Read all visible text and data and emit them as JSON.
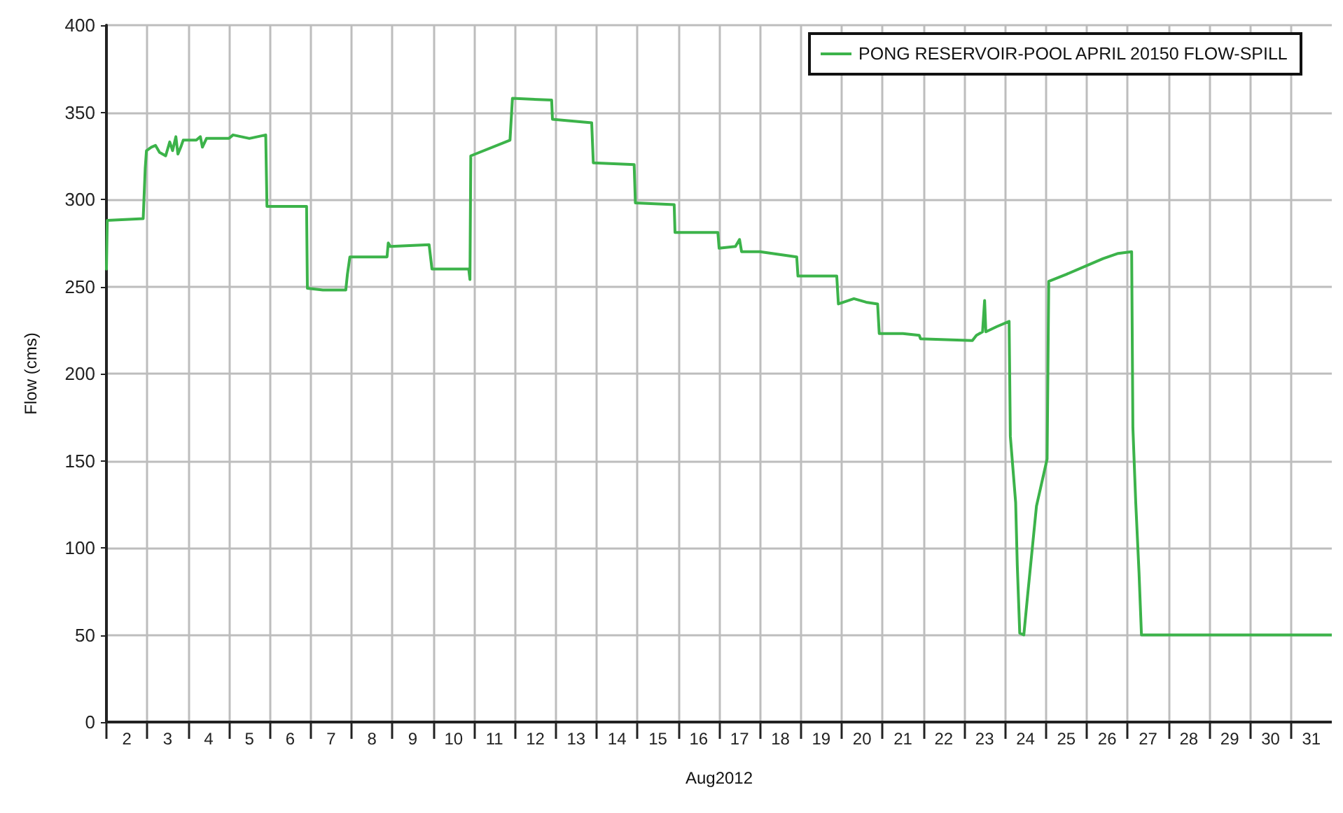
{
  "chart_data": {
    "type": "line",
    "xlabel": "Aug2012",
    "ylabel": "Flow (cms)",
    "x": [
      2,
      2.02,
      2.9,
      2.95,
      2.98,
      3.1,
      3.2,
      3.3,
      3.45,
      3.55,
      3.62,
      3.7,
      3.75,
      3.82,
      3.88,
      4.2,
      4.3,
      4.35,
      4.45,
      5.0,
      5.1,
      5.5,
      5.9,
      5.93,
      6.9,
      6.92,
      7.3,
      7.86,
      7.9,
      7.96,
      8.87,
      8.9,
      8.95,
      9.9,
      9.97,
      10.87,
      10.9,
      10.92,
      11.88,
      11.94,
      12.9,
      12.92,
      13.88,
      13.92,
      14.92,
      14.95,
      15.9,
      15.92,
      16.97,
      17.0,
      17.4,
      17.5,
      17.55,
      18.0,
      18.9,
      18.93,
      19.88,
      19.92,
      20.3,
      20.6,
      20.88,
      20.92,
      21.5,
      21.9,
      21.93,
      23.2,
      23.3,
      23.45,
      23.5,
      23.53,
      23.8,
      24.1,
      24.13,
      24.26,
      24.3,
      24.36,
      24.46,
      24.55,
      24.77,
      25.03,
      25.07,
      25.5,
      26.0,
      26.4,
      26.77,
      27.1,
      27.13,
      27.2,
      27.28,
      27.34,
      32
    ],
    "series": [
      {
        "name": "PONG RESERVOIR-POOL APRIL 20150 FLOW-SPILL",
        "color": "#3cb34a",
        "values": [
          260,
          288,
          289,
          318,
          328,
          330,
          331,
          327,
          325,
          333,
          328,
          336,
          326,
          330,
          334,
          334,
          336,
          330,
          335,
          335,
          337,
          335,
          337,
          296,
          296,
          249,
          248,
          248,
          257,
          267,
          267,
          275,
          273,
          274,
          260,
          260,
          254,
          325,
          334,
          358,
          357,
          346,
          344,
          321,
          320,
          298,
          297,
          281,
          281,
          272,
          273,
          277,
          270,
          270,
          267,
          256,
          256,
          240,
          243,
          241,
          240,
          223,
          223,
          222,
          220,
          219,
          222,
          224,
          242,
          224,
          227,
          230,
          164,
          126,
          90,
          51,
          50,
          72,
          124,
          151,
          253,
          257,
          262,
          266,
          269,
          270,
          169,
          126,
          86,
          50,
          50
        ]
      }
    ],
    "xlim": [
      2,
      32
    ],
    "xticks": [
      {
        "value": 2,
        "label": null
      },
      {
        "value": 3,
        "label": null
      },
      {
        "value": 4,
        "label": null
      },
      {
        "value": 5,
        "label": null
      },
      {
        "value": 6,
        "label": null
      },
      {
        "value": 7,
        "label": null
      },
      {
        "value": 8,
        "label": null
      },
      {
        "value": 9,
        "label": null
      },
      {
        "value": 10,
        "label": null
      },
      {
        "value": 11,
        "label": null
      },
      {
        "value": 12,
        "label": null
      },
      {
        "value": 13,
        "label": null
      },
      {
        "value": 14,
        "label": null
      },
      {
        "value": 15,
        "label": null
      },
      {
        "value": 16,
        "label": null
      },
      {
        "value": 17,
        "label": null
      },
      {
        "value": 18,
        "label": null
      },
      {
        "value": 19,
        "label": null
      },
      {
        "value": 20,
        "label": null
      },
      {
        "value": 21,
        "label": null
      },
      {
        "value": 22,
        "label": null
      },
      {
        "value": 23,
        "label": null
      },
      {
        "value": 24,
        "label": null
      },
      {
        "value": 25,
        "label": null
      },
      {
        "value": 26,
        "label": null
      },
      {
        "value": 27,
        "label": null
      },
      {
        "value": 28,
        "label": null
      },
      {
        "value": 29,
        "label": null
      },
      {
        "value": 30,
        "label": null
      },
      {
        "value": 31,
        "label": null
      },
      {
        "value": 2.5,
        "label": "2"
      },
      {
        "value": 3.5,
        "label": "3"
      },
      {
        "value": 4.5,
        "label": "4"
      },
      {
        "value": 5.5,
        "label": "5"
      },
      {
        "value": 6.5,
        "label": "6"
      },
      {
        "value": 7.5,
        "label": "7"
      },
      {
        "value": 8.5,
        "label": "8"
      },
      {
        "value": 9.5,
        "label": "9"
      },
      {
        "value": 10.5,
        "label": "10"
      },
      {
        "value": 11.5,
        "label": "11"
      },
      {
        "value": 12.5,
        "label": "12"
      },
      {
        "value": 13.5,
        "label": "13"
      },
      {
        "value": 14.5,
        "label": "14"
      },
      {
        "value": 15.5,
        "label": "15"
      },
      {
        "value": 16.5,
        "label": "16"
      },
      {
        "value": 17.5,
        "label": "17"
      },
      {
        "value": 18.5,
        "label": "18"
      },
      {
        "value": 19.5,
        "label": "19"
      },
      {
        "value": 20.5,
        "label": "20"
      },
      {
        "value": 21.5,
        "label": "21"
      },
      {
        "value": 22.5,
        "label": "22"
      },
      {
        "value": 23.5,
        "label": "23"
      },
      {
        "value": 24.5,
        "label": "24"
      },
      {
        "value": 25.5,
        "label": "25"
      },
      {
        "value": 26.5,
        "label": "26"
      },
      {
        "value": 27.5,
        "label": "27"
      },
      {
        "value": 28.5,
        "label": "28"
      },
      {
        "value": 29.5,
        "label": "29"
      },
      {
        "value": 30.5,
        "label": "30"
      },
      {
        "value": 31.5,
        "label": "31"
      }
    ],
    "ylim": [
      0,
      400
    ],
    "yticks": [
      0,
      50,
      100,
      150,
      200,
      250,
      300,
      350,
      400
    ],
    "grid": true,
    "legend": "top right",
    "marker": "none",
    "line_style": "solid"
  }
}
